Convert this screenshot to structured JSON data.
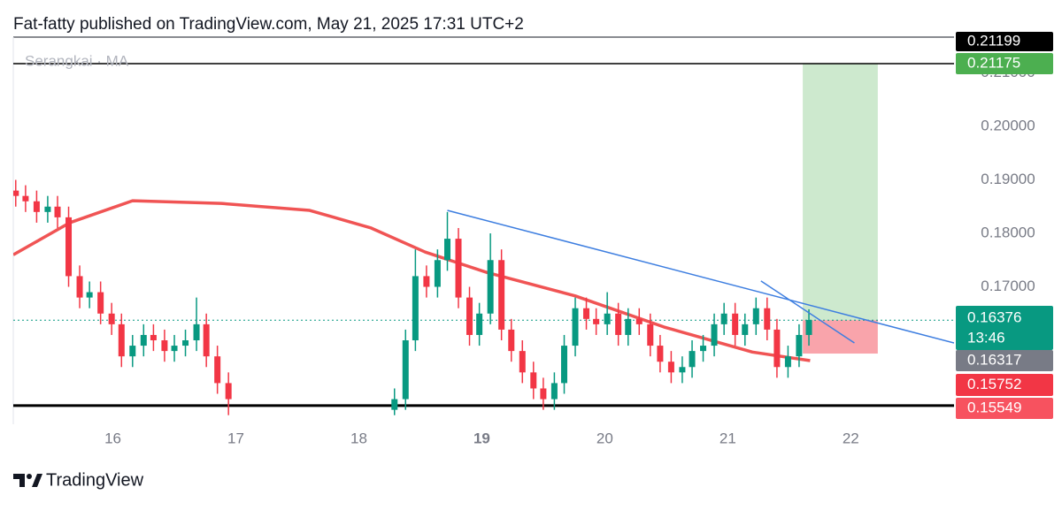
{
  "chart_data": {
    "type": "candlestick",
    "title": "Fat-fatty published on TradingView.com, May 21, 2025 17:31 UTC+2",
    "legend": "Serangkai · MA",
    "brand": "TradingView",
    "xlim": [
      15.19,
      22.84
    ],
    "ylim": [
      0.1443,
      0.2167
    ],
    "xticks": [
      16,
      17,
      18,
      19,
      20,
      21,
      22
    ],
    "yticks": [
      {
        "value": 0.17,
        "label": "0.17000"
      },
      {
        "value": 0.18,
        "label": "0.18000"
      },
      {
        "value": 0.19,
        "label": "0.19000"
      },
      {
        "value": 0.2,
        "label": "0.20000"
      },
      {
        "value": 0.21,
        "label": "0.21000"
      }
    ],
    "up_color": "#089981",
    "down_color": "#f23645",
    "x": [
      15.21,
      15.29,
      15.38,
      15.47,
      15.55,
      15.64,
      15.73,
      15.81,
      15.9,
      15.99,
      16.07,
      16.16,
      16.25,
      16.33,
      16.42,
      16.5,
      16.59,
      16.68,
      16.76,
      16.85,
      16.94,
      18.29,
      18.38,
      18.46,
      18.55,
      18.64,
      18.72,
      18.81,
      18.9,
      18.98,
      19.07,
      19.16,
      19.24,
      19.33,
      19.42,
      19.5,
      19.59,
      19.67,
      19.76,
      19.85,
      19.93,
      20.02,
      20.11,
      20.19,
      20.28,
      20.37,
      20.45,
      20.54,
      20.63,
      20.71,
      20.8,
      20.89,
      20.97,
      21.06,
      21.14,
      21.23,
      21.32,
      21.4,
      21.49,
      21.58,
      21.66
    ],
    "open": [
      0.188,
      0.187,
      0.186,
      0.184,
      0.185,
      0.183,
      0.172,
      0.168,
      0.169,
      0.165,
      0.163,
      0.157,
      0.159,
      0.161,
      0.16,
      0.158,
      0.159,
      0.16,
      0.163,
      0.157,
      0.152,
      0.147,
      0.149,
      0.16,
      0.172,
      0.17,
      0.175,
      0.179,
      0.168,
      0.161,
      0.165,
      0.175,
      0.162,
      0.158,
      0.154,
      0.151,
      0.149,
      0.152,
      0.159,
      0.166,
      0.164,
      0.163,
      0.165,
      0.161,
      0.164,
      0.163,
      0.159,
      0.156,
      0.154,
      0.155,
      0.158,
      0.159,
      0.163,
      0.165,
      0.161,
      0.163,
      0.166,
      0.162,
      0.155,
      0.157,
      0.161
    ],
    "high": [
      0.19,
      0.189,
      0.188,
      0.187,
      0.187,
      0.185,
      0.174,
      0.171,
      0.171,
      0.167,
      0.165,
      0.161,
      0.163,
      0.163,
      0.162,
      0.161,
      0.162,
      0.168,
      0.165,
      0.159,
      0.154,
      0.151,
      0.162,
      0.177,
      0.174,
      0.177,
      0.184,
      0.181,
      0.17,
      0.167,
      0.18,
      0.177,
      0.164,
      0.16,
      0.156,
      0.153,
      0.154,
      0.161,
      0.168,
      0.168,
      0.166,
      0.169,
      0.167,
      0.166,
      0.166,
      0.165,
      0.161,
      0.158,
      0.157,
      0.16,
      0.161,
      0.165,
      0.167,
      0.167,
      0.165,
      0.168,
      0.168,
      0.164,
      0.159,
      0.163,
      0.1658
    ],
    "low": [
      0.185,
      0.184,
      0.182,
      0.182,
      0.181,
      0.17,
      0.166,
      0.166,
      0.163,
      0.161,
      0.155,
      0.155,
      0.157,
      0.158,
      0.156,
      0.156,
      0.157,
      0.158,
      0.155,
      0.15,
      0.146,
      0.146,
      0.147,
      0.158,
      0.168,
      0.168,
      0.173,
      0.166,
      0.159,
      0.159,
      0.163,
      0.16,
      0.156,
      0.152,
      0.149,
      0.147,
      0.147,
      0.15,
      0.157,
      0.162,
      0.161,
      0.161,
      0.159,
      0.159,
      0.161,
      0.157,
      0.154,
      0.152,
      0.152,
      0.153,
      0.156,
      0.157,
      0.161,
      0.159,
      0.159,
      0.161,
      0.16,
      0.153,
      0.153,
      0.155,
      0.159
    ],
    "close": [
      0.187,
      0.186,
      0.184,
      0.185,
      0.183,
      0.172,
      0.168,
      0.169,
      0.165,
      0.163,
      0.157,
      0.159,
      0.161,
      0.16,
      0.158,
      0.159,
      0.16,
      0.163,
      0.157,
      0.152,
      0.149,
      0.149,
      0.16,
      0.172,
      0.17,
      0.175,
      0.179,
      0.168,
      0.161,
      0.165,
      0.175,
      0.162,
      0.158,
      0.154,
      0.151,
      0.149,
      0.152,
      0.159,
      0.166,
      0.164,
      0.163,
      0.165,
      0.161,
      0.164,
      0.163,
      0.159,
      0.156,
      0.154,
      0.155,
      0.158,
      0.159,
      0.163,
      0.165,
      0.161,
      0.163,
      0.166,
      0.162,
      0.155,
      0.157,
      0.161,
      0.1638
    ],
    "ma": {
      "color": "#f05454",
      "x": [
        15.19,
        15.65,
        16.16,
        16.88,
        17.6,
        18.1,
        18.54,
        19.04,
        19.76,
        20.48,
        21.2,
        21.67
      ],
      "values": [
        0.176,
        0.182,
        0.1861,
        0.1856,
        0.1843,
        0.181,
        0.1765,
        0.1727,
        0.1683,
        0.1625,
        0.1578,
        0.1562
      ]
    },
    "trendlines": [
      {
        "color": "#3d7ee0",
        "x": [
          18.72,
          22.84
        ],
        "values": [
          0.1843,
          0.1595
        ]
      },
      {
        "color": "#3d7ee0",
        "x": [
          21.27,
          22.03
        ],
        "values": [
          0.1711,
          0.1595
        ]
      }
    ],
    "position": {
      "x": [
        21.61,
        22.22
      ],
      "entry": 0.16376,
      "target": 0.21175,
      "stop": 0.15752
    },
    "horizontal_lines": [
      {
        "value": 0.21175,
        "color": "#000000",
        "width": 1.5
      },
      {
        "value": 0.1478,
        "color": "#000000",
        "width": 3
      }
    ],
    "current_price_line": 0.16376,
    "badges": [
      {
        "value": 0.21199,
        "color": "#000000"
      },
      {
        "value": 0.21175,
        "color": "#4caf50"
      },
      {
        "value": 0.16376,
        "color": "#089981",
        "countdown": "13:46"
      },
      {
        "value": 0.16317,
        "color": "#787b86"
      },
      {
        "value": 0.15752,
        "color": "#f23645"
      },
      {
        "value": 0.15549,
        "color": "#f7525f"
      }
    ]
  }
}
